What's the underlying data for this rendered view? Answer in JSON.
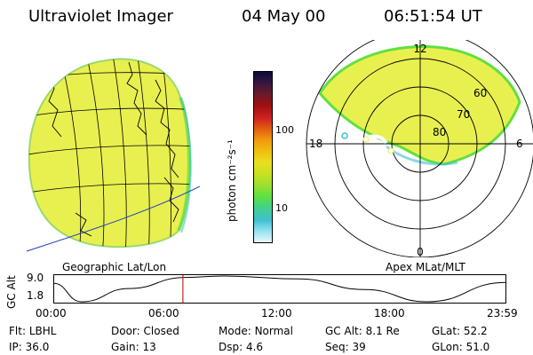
{
  "header": {
    "instrument": "Ultraviolet Imager",
    "date": "04 May 00",
    "time": "06:51:54 UT"
  },
  "colorbar": {
    "label": "photon cm⁻²s⁻¹",
    "ticks": [
      "100",
      "10"
    ],
    "colors": [
      "#0b0b3a",
      "#3a1740",
      "#6a1a2a",
      "#a01010",
      "#d02020",
      "#e05a10",
      "#f09a10",
      "#f0c010",
      "#e8e020",
      "#c8e020",
      "#98e030",
      "#60e040",
      "#40d090",
      "#40c0d0",
      "#90e0f0",
      "#e8f8fb"
    ]
  },
  "left_panel": {
    "caption": "Geographic Lat/Lon",
    "fill_color": "#e8f050",
    "grid_color": "#000000",
    "coast_color": "#000000",
    "equator_color": "#2040c0"
  },
  "right_panel": {
    "caption": "Apex MLat/MLT",
    "mlt_labels": {
      "top": "12",
      "left": "18",
      "right": "6",
      "bottom": "0"
    },
    "mlat_labels": [
      "60",
      "70",
      "80"
    ],
    "fill_color": "#e8f050"
  },
  "timeline": {
    "ylabel": "GC Alt",
    "ytick_top": "9.0",
    "ytick_bottom": "1.8",
    "xticks": [
      "00:00",
      "06:00",
      "12:00",
      "18:00",
      "23:59"
    ],
    "marker_color": "#d02020",
    "marker_hour": 6.865,
    "altitude_curve": [
      [
        0,
        7.0
      ],
      [
        1.5,
        1.8
      ],
      [
        4,
        5.5
      ],
      [
        7,
        8.6
      ],
      [
        9,
        9.0
      ],
      [
        13,
        8.2
      ],
      [
        16.5,
        5.2
      ],
      [
        19.8,
        1.8
      ],
      [
        23.98,
        7.2
      ]
    ]
  },
  "status": {
    "row1": {
      "filter_label": "Flt:",
      "filter_value": "LBHL",
      "door_label": "Door:",
      "door_value": "Closed",
      "mode_label": "Mode:",
      "mode_value": "Normal",
      "gcalt_label": "GC Alt:",
      "gcalt_value": "8.1 Re",
      "glat_label": "GLat:",
      "glat_value": "52.2"
    },
    "row2": {
      "ip_label": "IP:",
      "ip_value": "36.0",
      "gain_label": "Gain:",
      "gain_value": "13",
      "dsp_label": "Dsp:",
      "dsp_value": "4.6",
      "seq_label": "Seq:",
      "seq_value": "39",
      "glon_label": "GLon:",
      "glon_value": "51.0"
    }
  }
}
